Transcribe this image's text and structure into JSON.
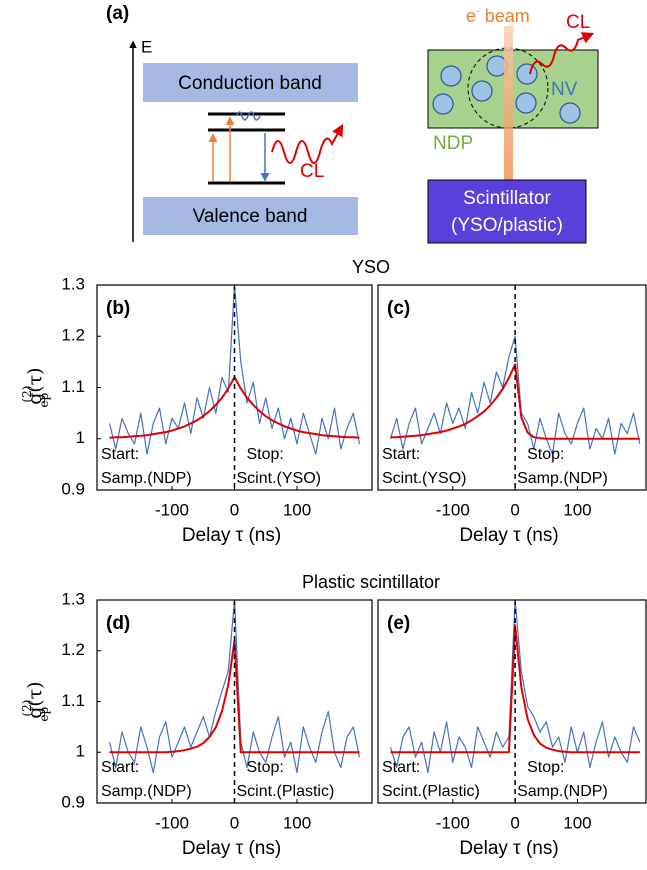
{
  "diagram": {
    "panel_label": "(a)",
    "energy_axis": "E",
    "conduction_band": "Conduction band",
    "valence_band": "Valence band",
    "cl_left": "CL",
    "beam_e": "e",
    "beam_sup": "-",
    "beam_text": " beam",
    "cl_right": "CL",
    "nv": "NV",
    "ndp": "NDP",
    "scintillator": "Scintillator",
    "scintillator_type": "(YSO/plastic)"
  },
  "chart_data": [
    {
      "type": "line",
      "panel_label": "(b)",
      "title": "YSO",
      "xlabel": "Delay τ (ns)",
      "ylabel": {
        "base": "g",
        "sup": "(2)",
        "sub": "ep",
        "tail": "(τ)"
      },
      "start_label": "Start:",
      "start_value": "Samp.(NDP)",
      "stop_label": "Stop:",
      "stop_value": "Scint.(YSO)",
      "xlim": [
        -220,
        220
      ],
      "ylim": [
        0.9,
        1.3
      ],
      "xticks": [
        -100,
        0,
        100
      ],
      "yticks": [
        0.9,
        1,
        1.1,
        1.2,
        1.3
      ],
      "vline": 0,
      "x": [
        -200,
        -190,
        -180,
        -170,
        -160,
        -150,
        -140,
        -130,
        -120,
        -110,
        -100,
        -90,
        -80,
        -70,
        -60,
        -50,
        -40,
        -30,
        -20,
        -10,
        0,
        10,
        20,
        30,
        40,
        50,
        60,
        70,
        80,
        90,
        100,
        110,
        120,
        130,
        140,
        150,
        160,
        170,
        180,
        190,
        200
      ],
      "series": [
        {
          "color": "#4472c4",
          "values": [
            1.03,
            0.98,
            1.04,
            1.01,
            0.99,
            1.05,
            0.97,
            1.03,
            1.06,
            0.99,
            1.04,
            1.02,
            1.07,
            1.01,
            1.08,
            1.04,
            1.1,
            1.05,
            1.12,
            1.09,
            1.3,
            1.15,
            1.07,
            1.11,
            1.03,
            1.08,
            1.02,
            1.06,
            1.0,
            1.04,
            0.99,
            1.05,
            1.01,
            0.97,
            1.04,
            1.0,
            1.06,
            0.98,
            1.02,
            1.05,
            0.99
          ]
        },
        {
          "color": "#e00000",
          "values": [
            1.002,
            1.003,
            1.003,
            1.004,
            1.005,
            1.006,
            1.007,
            1.009,
            1.011,
            1.013,
            1.016,
            1.02,
            1.024,
            1.03,
            1.036,
            1.044,
            1.054,
            1.066,
            1.08,
            1.098,
            1.12,
            1.098,
            1.08,
            1.066,
            1.054,
            1.044,
            1.036,
            1.03,
            1.024,
            1.02,
            1.016,
            1.013,
            1.011,
            1.009,
            1.007,
            1.006,
            1.005,
            1.004,
            1.003,
            1.003,
            1.002
          ]
        }
      ]
    },
    {
      "type": "line",
      "panel_label": "(c)",
      "xlabel": "Delay τ (ns)",
      "start_label": "Start:",
      "start_value": "Scint.(YSO)",
      "stop_label": "Stop:",
      "stop_value": "Samp.(NDP)",
      "xlim": [
        -220,
        210
      ],
      "ylim": [
        0.9,
        1.3
      ],
      "xticks": [
        -100,
        0,
        100
      ],
      "vline": 0,
      "x": [
        -200,
        -190,
        -180,
        -170,
        -160,
        -150,
        -140,
        -130,
        -120,
        -110,
        -100,
        -90,
        -80,
        -70,
        -60,
        -50,
        -40,
        -30,
        -20,
        -10,
        0,
        10,
        20,
        30,
        40,
        50,
        60,
        70,
        80,
        90,
        100,
        110,
        120,
        130,
        140,
        150,
        160,
        170,
        180,
        190,
        200
      ],
      "series": [
        {
          "color": "#4472c4",
          "values": [
            1.0,
            1.04,
            0.98,
            1.03,
            1.06,
            0.99,
            1.02,
            1.05,
            1.01,
            1.07,
            1.03,
            1.06,
            1.02,
            1.09,
            1.05,
            1.11,
            1.07,
            1.13,
            1.1,
            1.16,
            1.2,
            1.05,
            1.03,
            0.98,
            1.04,
            1.0,
            0.97,
            1.05,
            1.01,
            0.99,
            1.03,
            1.06,
            0.98,
            1.02,
            1.0,
            1.04,
            0.97,
            1.03,
            1.01,
            1.05,
            0.99
          ]
        },
        {
          "color": "#e00000",
          "values": [
            1.003,
            1.003,
            1.004,
            1.005,
            1.006,
            1.007,
            1.009,
            1.011,
            1.013,
            1.016,
            1.02,
            1.024,
            1.029,
            1.036,
            1.044,
            1.053,
            1.065,
            1.08,
            1.097,
            1.119,
            1.145,
            1.042,
            1.012,
            1.003,
            1.001,
            1,
            1,
            1,
            1,
            1,
            1,
            1,
            1,
            1,
            1,
            1,
            1,
            1,
            1,
            1,
            1
          ]
        }
      ]
    },
    {
      "type": "line",
      "panel_label": "(d)",
      "title": "Plastic scintillator",
      "xlabel": "Delay τ (ns)",
      "ylabel": {
        "base": "g",
        "sup": "(2)",
        "sub": "ep",
        "tail": "(τ)"
      },
      "start_label": "Start:",
      "start_value": "Samp.(NDP)",
      "stop_label": "Stop:",
      "stop_value": "Scint.(Plastic)",
      "xlim": [
        -220,
        220
      ],
      "ylim": [
        0.9,
        1.3
      ],
      "xticks": [
        -100,
        0,
        100
      ],
      "yticks": [
        0.9,
        1,
        1.1,
        1.2,
        1.3
      ],
      "vline": 0,
      "x": [
        -200,
        -190,
        -180,
        -170,
        -160,
        -150,
        -140,
        -130,
        -120,
        -110,
        -100,
        -90,
        -80,
        -70,
        -60,
        -50,
        -40,
        -30,
        -20,
        -10,
        0,
        10,
        20,
        30,
        40,
        50,
        60,
        70,
        80,
        90,
        100,
        110,
        120,
        130,
        140,
        150,
        160,
        170,
        180,
        190,
        200
      ],
      "series": [
        {
          "color": "#4472c4",
          "values": [
            1.02,
            0.97,
            1.04,
            1.0,
            0.98,
            1.05,
            1.01,
            0.96,
            1.03,
            1.06,
            0.99,
            1.02,
            1.05,
            1.01,
            1.04,
            1.07,
            1.03,
            1.08,
            1.12,
            1.16,
            1.3,
            1.02,
            0.97,
            1.04,
            1.0,
            0.98,
            1.03,
            1.07,
            0.99,
            1.02,
            0.96,
            1.05,
            1.01,
            0.98,
            1.04,
            1.08,
            1.0,
            0.97,
            1.03,
            1.05,
            0.99
          ]
        },
        {
          "color": "#e00000",
          "values": [
            1,
            1,
            1,
            1,
            1,
            1,
            1,
            1,
            1,
            1,
            1.001,
            1.002,
            1.004,
            1.007,
            1.011,
            1.018,
            1.03,
            1.049,
            1.081,
            1.133,
            1.22,
            1,
            1,
            1,
            1,
            1,
            1,
            1,
            1,
            1,
            1,
            1,
            1,
            1,
            1,
            1,
            1,
            1,
            1,
            1,
            1
          ]
        }
      ]
    },
    {
      "type": "line",
      "panel_label": "(e)",
      "xlabel": "Delay τ (ns)",
      "start_label": "Start:",
      "start_value": "Scint.(Plastic)",
      "stop_label": "Stop:",
      "stop_value": "Samp.(NDP)",
      "xlim": [
        -220,
        210
      ],
      "ylim": [
        0.9,
        1.3
      ],
      "xticks": [
        -100,
        0,
        100
      ],
      "vline": 0,
      "x": [
        -200,
        -190,
        -180,
        -170,
        -160,
        -150,
        -140,
        -130,
        -120,
        -110,
        -100,
        -90,
        -80,
        -70,
        -60,
        -50,
        -40,
        -30,
        -20,
        -10,
        0,
        10,
        20,
        30,
        40,
        50,
        60,
        70,
        80,
        90,
        100,
        110,
        120,
        130,
        140,
        150,
        160,
        170,
        180,
        190,
        200
      ],
      "series": [
        {
          "color": "#4472c4",
          "values": [
            1.01,
            0.97,
            1.03,
            1.05,
            0.99,
            1.02,
            0.96,
            1.04,
            1.0,
            1.06,
            0.98,
            1.03,
            1.01,
            0.97,
            1.05,
            1.02,
            0.99,
            1.04,
            1.01,
            1.03,
            1.3,
            1.16,
            1.09,
            1.07,
            1.04,
            1.06,
            1.01,
            1.03,
            0.98,
            1.05,
            1.0,
            1.04,
            0.97,
            1.02,
            1.06,
            0.99,
            1.03,
            1.0,
            0.98,
            1.05,
            1.02
          ]
        },
        {
          "color": "#e00000",
          "values": [
            1,
            1,
            1,
            1,
            1,
            1,
            1,
            1,
            1,
            1,
            1,
            1,
            1,
            1,
            1,
            1,
            1,
            1,
            1,
            1,
            1.25,
            1.128,
            1.066,
            1.034,
            1.017,
            1.009,
            1.005,
            1.002,
            1.001,
            1,
            1,
            1,
            1,
            1,
            1,
            1,
            1,
            1,
            1,
            1,
            1
          ]
        }
      ]
    }
  ]
}
